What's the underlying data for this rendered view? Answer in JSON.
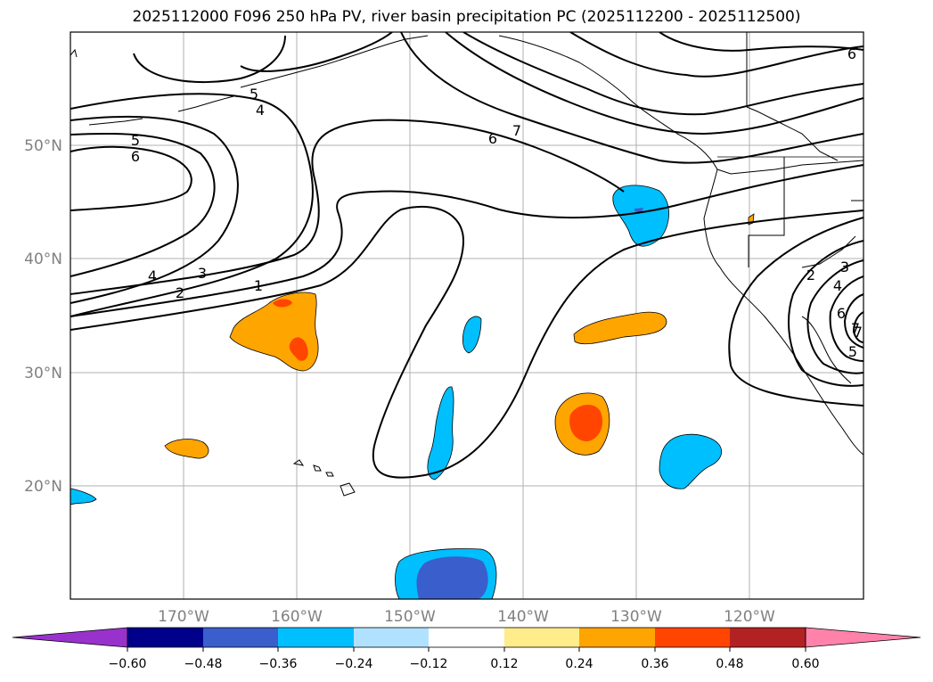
{
  "title": "2025112000 F096 250 hPa PV, river basin precipitation PC (2025112200 - 2025112500)",
  "map": {
    "lon_range": [
      -180,
      -110
    ],
    "lat_range": [
      10,
      60
    ],
    "lat_labels": [
      "50°N",
      "40°N",
      "30°N",
      "20°N"
    ],
    "lon_labels": [
      "170°W",
      "160°W",
      "150°W",
      "140°W",
      "130°W",
      "120°W"
    ],
    "pv_contour_labels": [
      "1",
      "2",
      "3",
      "4",
      "5",
      "6",
      "7",
      "4",
      "5",
      "6",
      "6",
      "7",
      "2",
      "3",
      "4",
      "5",
      "6",
      "7"
    ]
  },
  "colorbar": {
    "ticks": [
      "−0.60",
      "−0.48",
      "−0.36",
      "−0.24",
      "−0.12",
      "0.12",
      "0.24",
      "0.36",
      "0.48",
      "0.60"
    ],
    "colors": [
      "#9932cc",
      "#00008b",
      "#3a5fcd",
      "#00bfff",
      "#b0e2ff",
      "#ffffff",
      "#ffec8b",
      "#ffa500",
      "#ff4500",
      "#b22222",
      "#ff82ab"
    ]
  }
}
